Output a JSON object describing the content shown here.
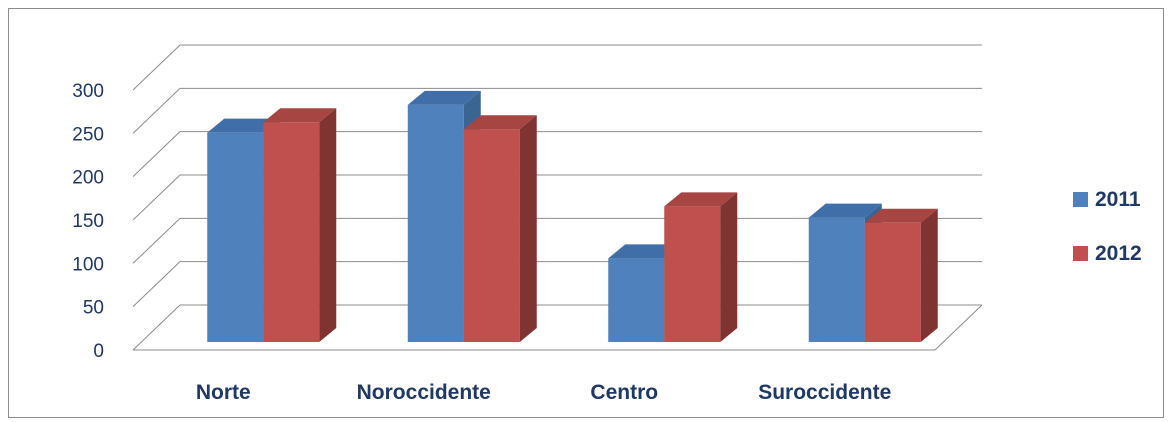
{
  "chart_data": {
    "type": "bar",
    "title": "",
    "xlabel": "",
    "ylabel": "",
    "categories": [
      "Norte",
      "Noroccidente",
      "Centro",
      "Suroccidente"
    ],
    "series": [
      {
        "name": "2011",
        "values": [
          260,
          292,
          115,
          162
        ],
        "color": "#4f81bd",
        "side": "#3a6491",
        "top": "#3f6ea8"
      },
      {
        "name": "2012",
        "values": [
          272,
          264,
          175,
          156
        ],
        "color": "#c0504d",
        "side": "#7f3431",
        "top": "#a64541"
      }
    ],
    "ylim": [
      0,
      300
    ],
    "yticks": [
      "0",
      "50",
      "100",
      "150",
      "200",
      "250",
      "300"
    ],
    "grid": true,
    "legend": "right",
    "three_d": true
  }
}
